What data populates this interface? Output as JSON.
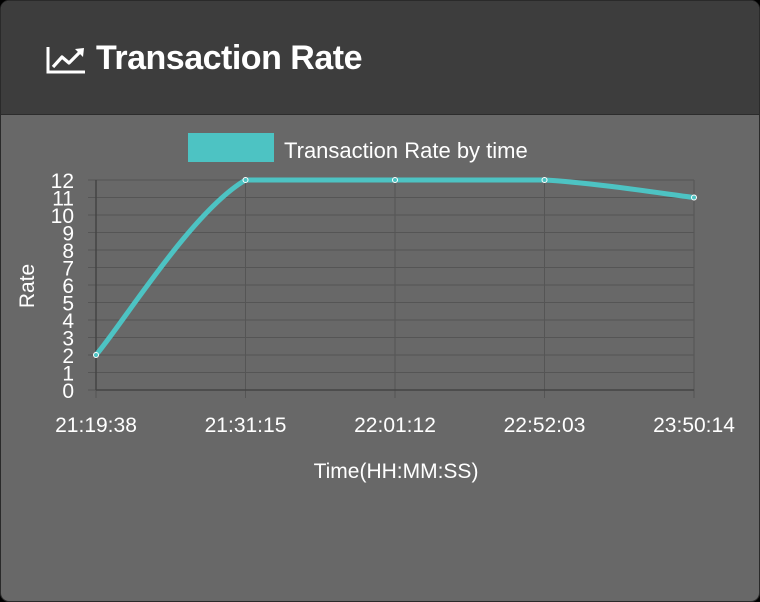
{
  "header": {
    "title": "Transaction Rate",
    "icon": "line-chart-icon"
  },
  "colors": {
    "series": "#4dc3c3",
    "header_bg": "#3d3d3d",
    "body_bg": "#686868",
    "grid": "#555555",
    "text": "#ffffff"
  },
  "chart_data": {
    "type": "line",
    "title": "",
    "xlabel": "Time(HH:MM:SS)",
    "ylabel": "Rate",
    "categories": [
      "21:19:38",
      "21:31:15",
      "22:01:12",
      "22:52:03",
      "23:50:14"
    ],
    "series": [
      {
        "name": "Transaction Rate by time",
        "values": [
          2,
          12,
          12,
          12,
          11
        ]
      }
    ],
    "ylim": [
      0,
      12
    ],
    "yticks": [
      0,
      1,
      2,
      3,
      4,
      5,
      6,
      7,
      8,
      9,
      10,
      11,
      12
    ],
    "grid": true,
    "legend": "top"
  }
}
